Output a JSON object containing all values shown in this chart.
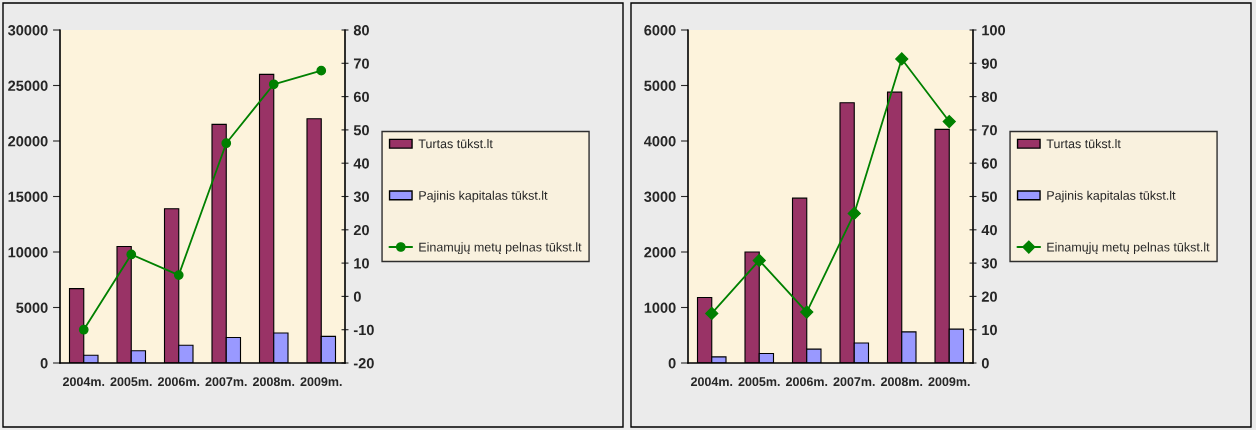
{
  "chart_data": [
    {
      "type": "bar",
      "categories": [
        "2004m.",
        "2005m.",
        "2006m.",
        "2007m.",
        "2008m.",
        "2009m."
      ],
      "series": [
        {
          "name": "Turtas tūkst.lt",
          "color": "#993366",
          "values": [
            6700,
            10500,
            13900,
            21500,
            26000,
            22000
          ]
        },
        {
          "name": "Pajinis kapitalas tūkst.lt",
          "color": "#9999ff",
          "values": [
            700,
            1100,
            1600,
            2300,
            2700,
            2400
          ]
        },
        {
          "name": "Einamųjų metų pelnas tūkst.lt",
          "type": "line",
          "axis": "y2",
          "color": "#008000",
          "values": [
            -10,
            12.6,
            6.4,
            46,
            63.7,
            67.8
          ]
        }
      ],
      "ylim": [
        0,
        30000
      ],
      "yticks": [
        0,
        5000,
        10000,
        15000,
        20000,
        25000,
        30000
      ],
      "y2lim": [
        -20,
        80
      ],
      "y2ticks": [
        -20,
        -10,
        0,
        10,
        20,
        30,
        40,
        50,
        60,
        70,
        80
      ],
      "marker": "circle",
      "legend": "right",
      "grid": false
    },
    {
      "type": "bar",
      "categories": [
        "2004m.",
        "2005m.",
        "2006m.",
        "2007m.",
        "2008m.",
        "2009m."
      ],
      "series": [
        {
          "name": "Turtas tūkst.lt",
          "color": "#993366",
          "values": [
            1180,
            2000,
            2970,
            4690,
            4880,
            4210
          ]
        },
        {
          "name": "Pajinis kapitalas tūkst.lt",
          "color": "#9999ff",
          "values": [
            110,
            170,
            250,
            360,
            560,
            610
          ]
        },
        {
          "name": "Einamųjų metų pelnas tūkst.lt",
          "type": "line",
          "axis": "y2",
          "color": "#008000",
          "values": [
            14.9,
            30.8,
            15.3,
            44.9,
            91.3,
            72.5
          ]
        }
      ],
      "ylim": [
        0,
        6000
      ],
      "yticks": [
        0,
        1000,
        2000,
        3000,
        4000,
        5000,
        6000
      ],
      "y2lim": [
        0,
        100
      ],
      "y2ticks": [
        0,
        10,
        20,
        30,
        40,
        50,
        60,
        70,
        80,
        90,
        100
      ],
      "marker": "diamond",
      "legend": "right",
      "grid": false
    }
  ]
}
